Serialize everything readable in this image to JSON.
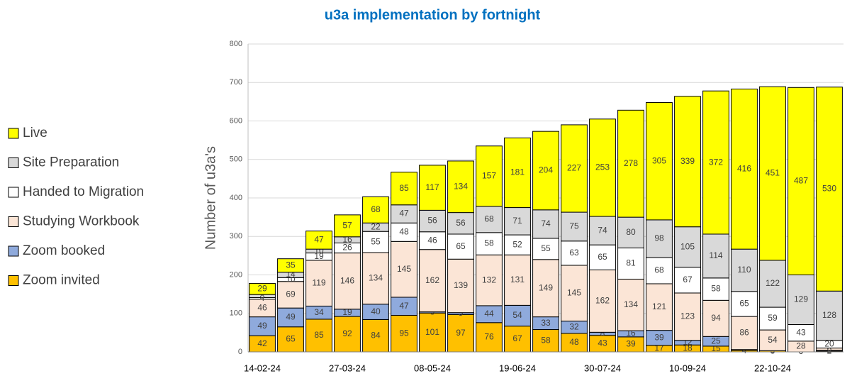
{
  "chart_data": {
    "type": "stacked_bar",
    "title": "u3a implementation by fortnight",
    "y_label": "Number of u3a's",
    "categories": [
      "14-02-24",
      null,
      null,
      "27-03-24",
      null,
      null,
      "08-05-24",
      null,
      null,
      "19-06-24",
      null,
      null,
      "30-07-24",
      null,
      null,
      "10-09-24",
      null,
      null,
      "22-10-24",
      null,
      null
    ],
    "series": [
      {
        "name": "Zoom invited",
        "color": "#ffc000",
        "values": [
          42,
          65,
          85,
          92,
          84,
          95,
          101,
          97,
          76,
          67,
          58,
          48,
          43,
          39,
          17,
          18,
          15,
          4,
          3,
          0,
          2
        ]
      },
      {
        "name": "Zoom booked",
        "color": "#8faadc",
        "values": [
          49,
          49,
          34,
          19,
          40,
          47,
          3,
          5,
          44,
          54,
          33,
          32,
          8,
          16,
          39,
          12,
          25,
          2,
          0,
          0,
          2
        ]
      },
      {
        "name": "Studying Workbook",
        "color": "#fbe5d6",
        "values": [
          46,
          69,
          119,
          146,
          134,
          145,
          162,
          139,
          132,
          131,
          149,
          145,
          162,
          134,
          121,
          123,
          94,
          86,
          54,
          28,
          6
        ]
      },
      {
        "name": "Handed to Migration",
        "color": "#ffffff",
        "values": [
          4,
          10,
          19,
          26,
          55,
          48,
          46,
          65,
          58,
          52,
          55,
          63,
          65,
          81,
          68,
          67,
          58,
          65,
          59,
          43,
          20
        ]
      },
      {
        "name": "Site Preparation",
        "color": "#d9d9d9",
        "values": [
          8,
          14,
          10,
          16,
          22,
          47,
          56,
          56,
          68,
          71,
          74,
          75,
          74,
          80,
          98,
          105,
          114,
          110,
          122,
          129,
          128
        ]
      },
      {
        "name": "Live",
        "color": "#ffff00",
        "values": [
          29,
          35,
          47,
          57,
          68,
          85,
          117,
          134,
          157,
          181,
          204,
          227,
          253,
          278,
          305,
          339,
          372,
          416,
          451,
          487,
          530
        ]
      }
    ],
    "ylim": [
      0,
      800
    ],
    "yticks": [
      0,
      100,
      200,
      300,
      400,
      500,
      600,
      700,
      800
    ],
    "grid": true,
    "legend": "left"
  }
}
